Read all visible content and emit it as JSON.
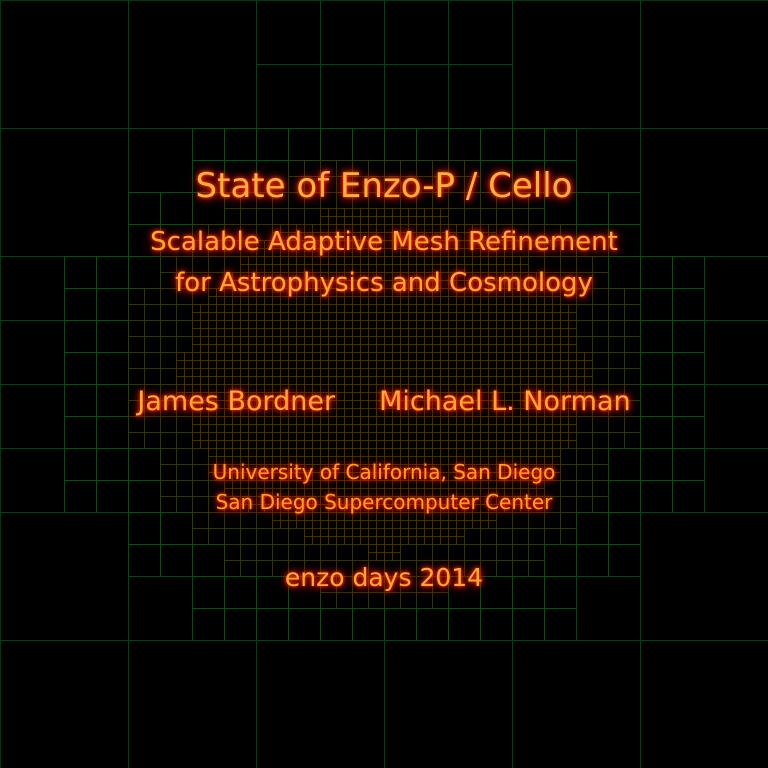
{
  "title": "State of Enzo-P / Cello",
  "subtitle_line1": "Scalable Adaptive Mesh Refinement",
  "subtitle_line2": "for Astrophysics and Cosmology",
  "authors": [
    "James Bordner",
    "Michael L. Norman"
  ],
  "affiliation_line1": "University of California, San Diego",
  "affiliation_line2": "San Diego Supercomputer Center",
  "event": "enzo days 2014",
  "colors": {
    "background": "#000000",
    "text": "#ffa838",
    "glow": "#ff2200",
    "mesh_coarse": "#0f3d1c",
    "mesh_fine": "#4a3a10"
  }
}
